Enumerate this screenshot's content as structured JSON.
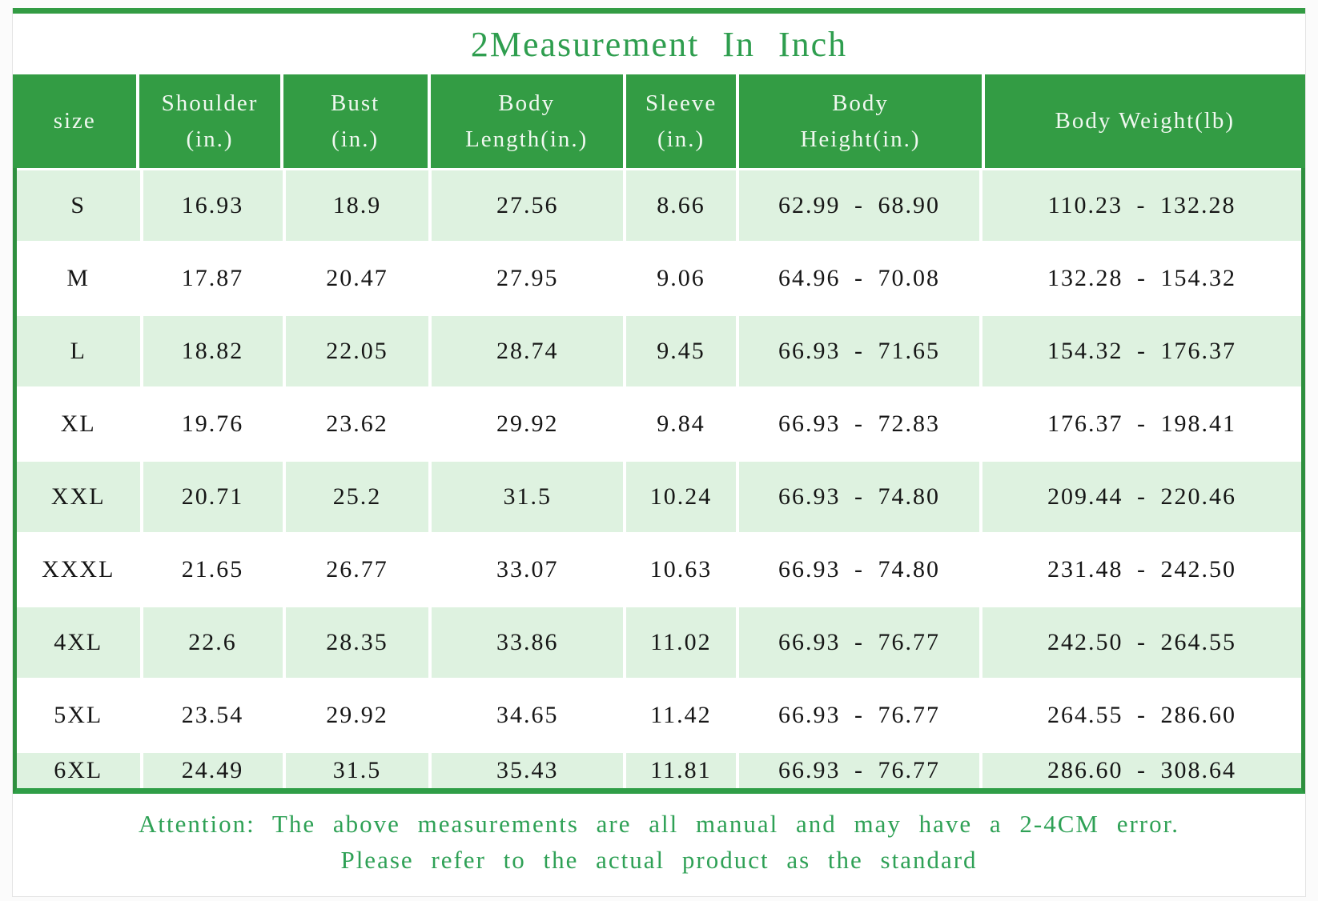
{
  "title": "2Measurement In Inch",
  "accent_colors": {
    "header_green": "#339c44",
    "light_row_green": "#def2e0",
    "side_border_green": "#2e8f3e",
    "title_green": "#2f9e4f",
    "attention_green": "#2fa156"
  },
  "table": {
    "columns": [
      {
        "label": "size"
      },
      {
        "label": "Shoulder\n(in.)"
      },
      {
        "label": "Bust\n(in.)"
      },
      {
        "label": "Body\nLength(in.)"
      },
      {
        "label": "Sleeve\n(in.)"
      },
      {
        "label": "Body\nHeight(in.)"
      },
      {
        "label": "Body Weight(lb)"
      }
    ],
    "rows": [
      [
        "S",
        "16.93",
        "18.9",
        "27.56",
        "8.66",
        "62.99 - 68.90",
        "110.23 - 132.28"
      ],
      [
        "M",
        "17.87",
        "20.47",
        "27.95",
        "9.06",
        "64.96 - 70.08",
        "132.28 - 154.32"
      ],
      [
        "L",
        "18.82",
        "22.05",
        "28.74",
        "9.45",
        "66.93 - 71.65",
        "154.32 - 176.37"
      ],
      [
        "XL",
        "19.76",
        "23.62",
        "29.92",
        "9.84",
        "66.93 - 72.83",
        "176.37 - 198.41"
      ],
      [
        "XXL",
        "20.71",
        "25.2",
        "31.5",
        "10.24",
        "66.93 - 74.80",
        "209.44 - 220.46"
      ],
      [
        "XXXL",
        "21.65",
        "26.77",
        "33.07",
        "10.63",
        "66.93 - 74.80",
        "231.48 - 242.50"
      ],
      [
        "4XL",
        "22.6",
        "28.35",
        "33.86",
        "11.02",
        "66.93 - 76.77",
        "242.50 - 264.55"
      ],
      [
        "5XL",
        "23.54",
        "29.92",
        "34.65",
        "11.42",
        "66.93 - 76.77",
        "264.55 - 286.60"
      ],
      [
        "6XL",
        "24.49",
        "31.5",
        "35.43",
        "11.81",
        "66.93 - 76.77",
        "286.60 - 308.64"
      ]
    ]
  },
  "attention": {
    "line1": "Attention: The above measurements are all manual and may have a 2-4CM error.",
    "line2": "Please refer to the actual product as the standard"
  },
  "chart_data": {
    "type": "table",
    "title": "2Measurement In Inch",
    "columns": [
      "size",
      "Shoulder (in.)",
      "Bust (in.)",
      "Body Length(in.)",
      "Sleeve (in.)",
      "Body Height(in.)",
      "Body Weight(lb)"
    ],
    "rows": [
      [
        "S",
        16.93,
        18.9,
        27.56,
        8.66,
        "62.99 - 68.90",
        "110.23 - 132.28"
      ],
      [
        "M",
        17.87,
        20.47,
        27.95,
        9.06,
        "64.96 - 70.08",
        "132.28 - 154.32"
      ],
      [
        "L",
        18.82,
        22.05,
        28.74,
        9.45,
        "66.93 - 71.65",
        "154.32 - 176.37"
      ],
      [
        "XL",
        19.76,
        23.62,
        29.92,
        9.84,
        "66.93 - 72.83",
        "176.37 - 198.41"
      ],
      [
        "XXL",
        20.71,
        25.2,
        31.5,
        10.24,
        "66.93 - 74.80",
        "209.44 - 220.46"
      ],
      [
        "XXXL",
        21.65,
        26.77,
        33.07,
        10.63,
        "66.93 - 74.80",
        "231.48 - 242.50"
      ],
      [
        "4XL",
        22.6,
        28.35,
        33.86,
        11.02,
        "66.93 - 76.77",
        "242.50 - 264.55"
      ],
      [
        "5XL",
        23.54,
        29.92,
        34.65,
        11.42,
        "66.93 - 76.77",
        "264.55 - 286.60"
      ],
      [
        "6XL",
        24.49,
        31.5,
        35.43,
        11.81,
        "66.93 - 76.77",
        "286.60 - 308.64"
      ]
    ],
    "note": "Attention: The above measurements are all manual and may have a 2-4CM error. Please refer to the actual product as the standard"
  }
}
